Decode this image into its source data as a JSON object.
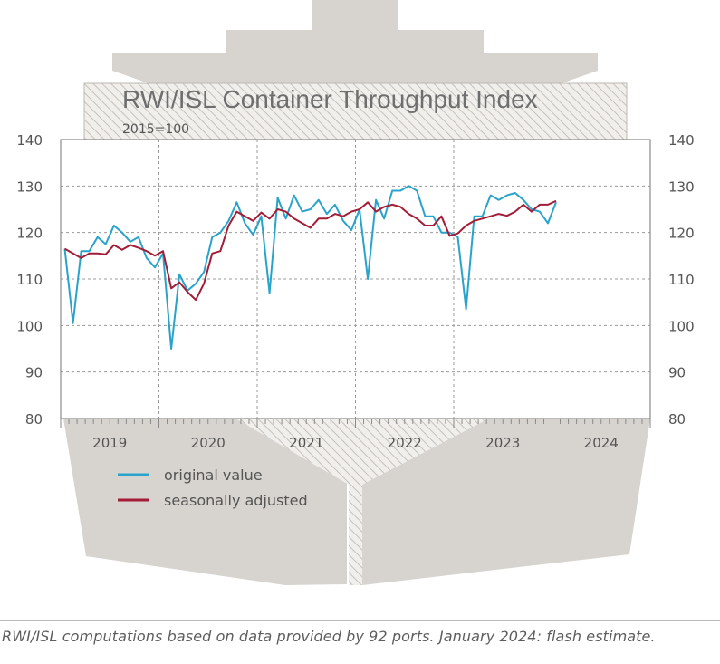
{
  "chart_data": {
    "type": "line",
    "title": "RWI/ISL Container Throughput Index",
    "subtitle": "2015=100",
    "x_unit": "month",
    "x_start": "2019-01",
    "x_end": "2024-12",
    "year_labels": [
      "2019",
      "2020",
      "2021",
      "2022",
      "2023",
      "2024"
    ],
    "ylim": [
      80,
      140
    ],
    "yticks": [
      80,
      90,
      100,
      110,
      120,
      130,
      140
    ],
    "grid": true,
    "legend_position": "bottom-left",
    "series": [
      {
        "name": "original value",
        "color": "#29a3cc",
        "start": "2019-01",
        "values": [
          116.5,
          100.5,
          116,
          116,
          119,
          117.5,
          121.5,
          120,
          118,
          119,
          114.5,
          112.5,
          115.5,
          95,
          111,
          107.5,
          109,
          111.5,
          119,
          120,
          122.5,
          126.5,
          122,
          119.5,
          123.5,
          107,
          127.5,
          123,
          128,
          124.5,
          125,
          127,
          124,
          126,
          122.5,
          120.5,
          125,
          110,
          127,
          123,
          129,
          129,
          130,
          129,
          123.5,
          123.5,
          120,
          120,
          119,
          103.5,
          123.5,
          123.5,
          128,
          127,
          128,
          128.5,
          127,
          125,
          124.5,
          122,
          126.5
        ]
      },
      {
        "name": "seasonally adjusted",
        "color": "#a31d37",
        "start": "2019-01",
        "values": [
          116.5,
          115.5,
          114.5,
          115.5,
          115.5,
          115.3,
          117.3,
          116.3,
          117.3,
          116.7,
          116,
          115,
          116,
          108,
          109.3,
          107.2,
          105.5,
          109,
          115.5,
          116,
          121.5,
          124.5,
          123.5,
          122.5,
          124.3,
          123,
          125,
          124.5,
          123,
          122,
          121,
          123,
          123,
          124,
          123.5,
          124.5,
          125,
          126.5,
          124.5,
          125.5,
          126,
          125.5,
          124,
          123,
          121.5,
          121.5,
          123.5,
          119.3,
          119.8,
          121.5,
          122.5,
          123,
          123.5,
          124,
          123.6,
          124.5,
          126,
          124.5,
          126,
          126,
          126.8
        ]
      }
    ]
  },
  "footnote": "RWI/ISL computations based on data provided by 92 ports. January 2024: flash estimate."
}
